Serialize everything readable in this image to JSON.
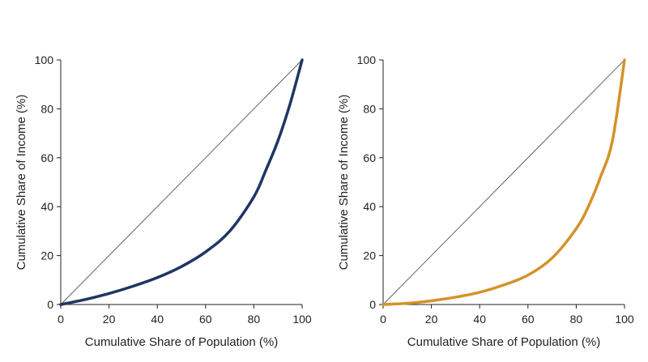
{
  "chart_data": [
    {
      "type": "line",
      "title": "",
      "xlabel": "Cumulative Share of Population (%)",
      "ylabel": "Cumulative Share of Income (%)",
      "xlim": [
        0,
        100
      ],
      "ylim": [
        0,
        100
      ],
      "xticks": [
        "0",
        "20",
        "40",
        "60",
        "80",
        "100"
      ],
      "yticks": [
        "0",
        "20",
        "40",
        "60",
        "80",
        "100"
      ],
      "grid": false,
      "legend": "none",
      "series": [
        {
          "role": "equality-line",
          "color": "#555555",
          "x": [
            0,
            100
          ],
          "y": [
            0,
            100
          ]
        },
        {
          "role": "lorenz-curve",
          "color": "#1f3566",
          "x": [
            0,
            10,
            20,
            30,
            40,
            50,
            60,
            70,
            80,
            85,
            90,
            95,
            100
          ],
          "y": [
            0,
            2,
            4.5,
            7.5,
            11,
            15.5,
            21.5,
            30,
            44,
            55,
            67,
            82,
            100
          ]
        }
      ]
    },
    {
      "type": "line",
      "title": "",
      "xlabel": "Cumulative Share of Population (%)",
      "ylabel": "Cumulative Share of Income (%)",
      "xlim": [
        0,
        100
      ],
      "ylim": [
        0,
        100
      ],
      "xticks": [
        "0",
        "20",
        "40",
        "60",
        "80",
        "100"
      ],
      "yticks": [
        "0",
        "20",
        "40",
        "60",
        "80",
        "100"
      ],
      "grid": false,
      "legend": "none",
      "series": [
        {
          "role": "equality-line",
          "color": "#555555",
          "x": [
            0,
            100
          ],
          "y": [
            0,
            100
          ]
        },
        {
          "role": "lorenz-curve",
          "color": "#d4922a",
          "x": [
            0,
            10,
            20,
            30,
            40,
            50,
            60,
            70,
            80,
            85,
            90,
            95,
            100
          ],
          "y": [
            0,
            0.5,
            1.5,
            3,
            5,
            8,
            12,
            19,
            31,
            40,
            52,
            67,
            100
          ]
        }
      ]
    }
  ]
}
